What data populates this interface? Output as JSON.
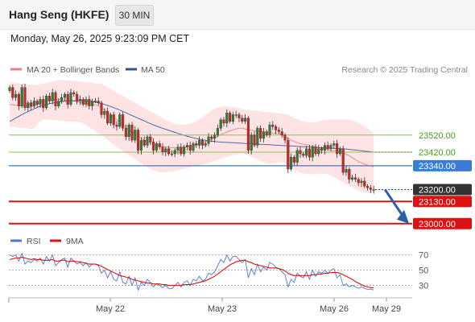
{
  "header": {
    "instrument": "Hang Seng (HKFE)",
    "timeframe": "30 MIN",
    "datetime": "Monday, May 26, 2025 9:23:09 PM CET",
    "credit": "Research © 2025 Trading Central"
  },
  "colors": {
    "bollinger": "#f08080",
    "bollinger_fill": "#fde3e3",
    "ma50": "#2f5597",
    "candle_up": "#2e7d32",
    "candle_down": "#c62828",
    "resistance": "#8bc34a",
    "pivot": "#3a7bd5",
    "support": "#dd1111",
    "last_price": "#333333",
    "arrow": "#2b5fa6",
    "rsi": "#4f74d6",
    "rsi_ma": "#dd1111"
  },
  "chart_data": [
    {
      "type": "candlestick",
      "legend": [
        {
          "label": "MA 20 + Bollinger Bands",
          "color": "#f08080"
        },
        {
          "label": "MA 50",
          "color": "#2f5597"
        }
      ],
      "x_tick_labels": [
        "May 22",
        "May 23",
        "May 26",
        "May 29"
      ],
      "price_levels": [
        {
          "label": "23520.00",
          "value": 23520,
          "kind": "resistance"
        },
        {
          "label": "23420.00",
          "value": 23420,
          "kind": "resistance"
        },
        {
          "label": "23340.00",
          "value": 23340,
          "kind": "pivot"
        },
        {
          "label": "23200.00",
          "value": 23200,
          "kind": "last"
        },
        {
          "label": "23130.00",
          "value": 23130,
          "kind": "support"
        },
        {
          "label": "23000.00",
          "value": 23000,
          "kind": "support"
        }
      ],
      "forecast": "down",
      "ylim": [
        22980,
        23850
      ],
      "close": [
        23800,
        23740,
        23760,
        23690,
        23800,
        23680,
        23710,
        23690,
        23720,
        23700,
        23730,
        23680,
        23750,
        23720,
        23770,
        23690,
        23720,
        23740,
        23760,
        23700,
        23770,
        23760,
        23720,
        23730,
        23700,
        23730,
        23690,
        23720,
        23720,
        23710,
        23640,
        23660,
        23590,
        23640,
        23580,
        23570,
        23640,
        23560,
        23510,
        23580,
        23490,
        23550,
        23430,
        23490,
        23460,
        23510,
        23480,
        23430,
        23470,
        23450,
        23420,
        23440,
        23410,
        23410,
        23430,
        23450,
        23410,
        23450,
        23460,
        23430,
        23470,
        23460,
        23490,
        23460,
        23470,
        23510,
        23500,
        23520,
        23560,
        23610,
        23590,
        23650,
        23600,
        23640,
        23640,
        23620,
        23600,
        23620,
        23430,
        23520,
        23460,
        23560,
        23500,
        23540,
        23520,
        23580,
        23570,
        23550,
        23540,
        23520,
        23490,
        23320,
        23390,
        23360,
        23430,
        23410,
        23400,
        23440,
        23390,
        23450,
        23410,
        23440,
        23430,
        23460,
        23440,
        23460,
        23470,
        23410,
        23440,
        23300,
        23320,
        23260,
        23270,
        23260,
        23240,
        23250,
        23220,
        23210,
        23200,
        23200
      ],
      "ma20": [
        23700,
        23698,
        23696,
        23694,
        23692,
        23690,
        23688,
        23686,
        23690,
        23700,
        23712,
        23720,
        23725,
        23727,
        23728,
        23730,
        23730,
        23728,
        23726,
        23724,
        23722,
        23720,
        23716,
        23712,
        23708,
        23704,
        23702,
        23700,
        23698,
        23690,
        23680,
        23670,
        23655,
        23640,
        23625,
        23610,
        23595,
        23580,
        23565,
        23550,
        23538,
        23526,
        23514,
        23502,
        23490,
        23482,
        23474,
        23466,
        23460,
        23456,
        23452,
        23450,
        23448,
        23446,
        23445,
        23446,
        23448,
        23450,
        23452,
        23455,
        23458,
        23462,
        23466,
        23472,
        23480,
        23488,
        23496,
        23505,
        23514,
        23522,
        23530,
        23538,
        23545,
        23550,
        23556,
        23560,
        23560,
        23556,
        23552,
        23548,
        23545,
        23542,
        23540,
        23538,
        23536,
        23534,
        23532,
        23530,
        23528,
        23520,
        23510,
        23500,
        23490,
        23482,
        23476,
        23470,
        23466,
        23464,
        23460,
        23456,
        23450,
        23446,
        23442,
        23438,
        23434,
        23430,
        23428,
        23426,
        23422,
        23416,
        23408,
        23398,
        23387,
        23376,
        23366,
        23357,
        23349,
        23343,
        23338,
        23334
      ],
      "bb_upper": [
        23830,
        23828,
        23826,
        23824,
        23822,
        23820,
        23818,
        23816,
        23814,
        23815,
        23818,
        23822,
        23826,
        23830,
        23835,
        23840,
        23842,
        23843,
        23843,
        23842,
        23840,
        23838,
        23836,
        23834,
        23832,
        23830,
        23828,
        23826,
        23824,
        23822,
        23820,
        23812,
        23800,
        23790,
        23780,
        23770,
        23760,
        23750,
        23740,
        23730,
        23720,
        23710,
        23700,
        23690,
        23680,
        23670,
        23660,
        23650,
        23640,
        23630,
        23620,
        23610,
        23600,
        23592,
        23586,
        23582,
        23580,
        23581,
        23584,
        23588,
        23594,
        23602,
        23612,
        23624,
        23638,
        23652,
        23665,
        23675,
        23682,
        23686,
        23688,
        23688,
        23686,
        23683,
        23680,
        23676,
        23672,
        23670,
        23668,
        23666,
        23664,
        23662,
        23660,
        23658,
        23656,
        23654,
        23652,
        23650,
        23648,
        23646,
        23644,
        23640,
        23630,
        23620,
        23612,
        23606,
        23600,
        23596,
        23594,
        23594,
        23596,
        23600,
        23604,
        23608,
        23610,
        23611,
        23612,
        23612,
        23612,
        23612,
        23612,
        23610,
        23606,
        23600,
        23592,
        23582,
        23572,
        23560,
        23546,
        23530
      ],
      "bb_lower": [
        23570,
        23568,
        23566,
        23564,
        23562,
        23560,
        23558,
        23556,
        23560,
        23580,
        23600,
        23610,
        23612,
        23612,
        23610,
        23608,
        23606,
        23604,
        23602,
        23600,
        23598,
        23598,
        23598,
        23596,
        23590,
        23580,
        23568,
        23556,
        23544,
        23532,
        23520,
        23506,
        23492,
        23478,
        23464,
        23450,
        23438,
        23426,
        23414,
        23402,
        23390,
        23378,
        23366,
        23354,
        23342,
        23330,
        23320,
        23312,
        23306,
        23302,
        23300,
        23300,
        23302,
        23306,
        23310,
        23314,
        23318,
        23322,
        23326,
        23330,
        23334,
        23338,
        23342,
        23346,
        23350,
        23356,
        23362,
        23368,
        23374,
        23380,
        23386,
        23392,
        23398,
        23402,
        23406,
        23408,
        23410,
        23408,
        23400,
        23392,
        23384,
        23376,
        23368,
        23360,
        23352,
        23350,
        23352,
        23356,
        23360,
        23362,
        23356,
        23346,
        23334,
        23322,
        23310,
        23300,
        23295,
        23292,
        23290,
        23290,
        23292,
        23294,
        23296,
        23294,
        23290,
        23282,
        23272,
        23262,
        23252,
        23242,
        23232,
        23222,
        23212,
        23202,
        23194,
        23188,
        23184,
        23182,
        23182,
        23184
      ],
      "ma50": [
        23600,
        23610,
        23620,
        23630,
        23640,
        23650,
        23658,
        23666,
        23674,
        23682,
        23690,
        23696,
        23700,
        23704,
        23708,
        23711,
        23714,
        23716,
        23718,
        23720,
        23721,
        23722,
        23722,
        23722,
        23721,
        23720,
        23718,
        23716,
        23713,
        23709,
        23705,
        23700,
        23694,
        23688,
        23681,
        23674,
        23667,
        23659,
        23651,
        23643,
        23635,
        23627,
        23619,
        23611,
        23603,
        23595,
        23587,
        23580,
        23573,
        23566,
        23560,
        23554,
        23548,
        23542,
        23536,
        23530,
        23524,
        23519,
        23514,
        23509,
        23504,
        23500,
        23496,
        23492,
        23489,
        23486,
        23484,
        23482,
        23480,
        23479,
        23478,
        23477,
        23476,
        23475,
        23474,
        23473,
        23472,
        23471,
        23470,
        23469,
        23468,
        23467,
        23466,
        23465,
        23464,
        23463,
        23462,
        23461,
        23460,
        23459,
        23458,
        23457,
        23456,
        23455,
        23454,
        23453,
        23452,
        23451,
        23450,
        23449,
        23448,
        23447,
        23446,
        23445,
        23444,
        23443,
        23442,
        23441,
        23440,
        23439,
        23438,
        23436,
        23434,
        23432,
        23430,
        23428,
        23426,
        23424,
        23422,
        23420
      ]
    },
    {
      "type": "line",
      "legend": [
        {
          "label": "RSI",
          "color": "#4f74d6"
        },
        {
          "label": "9MA",
          "color": "#dd1111"
        }
      ],
      "y_tick_labels": [
        "70",
        "50",
        "30"
      ],
      "y_ticks": [
        70,
        50,
        30
      ],
      "ylim": [
        20,
        75
      ],
      "series": [
        {
          "name": "RSI",
          "values": [
            70,
            68,
            70,
            62,
            72,
            58,
            62,
            60,
            64,
            62,
            66,
            58,
            68,
            62,
            70,
            56,
            60,
            64,
            66,
            54,
            66,
            62,
            58,
            60,
            56,
            60,
            54,
            58,
            58,
            56,
            46,
            50,
            40,
            48,
            38,
            36,
            48,
            34,
            32,
            42,
            30,
            40,
            24,
            34,
            30,
            38,
            34,
            28,
            32,
            30,
            27,
            30,
            26,
            26,
            30,
            34,
            28,
            34,
            36,
            30,
            38,
            36,
            42,
            36,
            38,
            46,
            44,
            48,
            56,
            64,
            60,
            70,
            62,
            68,
            68,
            64,
            60,
            64,
            40,
            52,
            44,
            58,
            48,
            54,
            50,
            60,
            58,
            54,
            52,
            48,
            44,
            28,
            38,
            34,
            46,
            42,
            40,
            48,
            38,
            50,
            42,
            48,
            46,
            50,
            46,
            50,
            52,
            40,
            44,
            30,
            32,
            28,
            30,
            28,
            26,
            28,
            26,
            25,
            25,
            24
          ]
        },
        {
          "name": "9MA",
          "values": [
            64,
            65,
            66,
            66,
            67,
            66,
            65,
            64,
            65,
            64,
            64,
            63,
            63,
            63,
            64,
            62,
            62,
            63,
            63,
            61,
            62,
            62,
            61,
            61,
            60,
            59,
            58,
            58,
            58,
            57,
            55,
            53,
            51,
            49,
            47,
            45,
            43,
            42,
            41,
            40,
            38,
            37,
            36,
            35,
            34,
            33,
            33,
            32,
            32,
            32,
            31,
            31,
            30,
            30,
            30,
            30,
            30,
            31,
            31,
            31,
            32,
            33,
            34,
            35,
            36,
            38,
            40,
            42,
            45,
            48,
            51,
            54,
            57,
            59,
            61,
            62,
            63,
            63,
            61,
            60,
            58,
            57,
            56,
            55,
            54,
            53,
            53,
            53,
            52,
            51,
            49,
            46,
            44,
            43,
            43,
            43,
            43,
            43,
            43,
            44,
            44,
            45,
            45,
            46,
            46,
            47,
            47,
            47,
            46,
            44,
            42,
            40,
            38,
            35,
            33,
            31,
            29,
            28,
            27,
            27
          ]
        }
      ]
    }
  ]
}
